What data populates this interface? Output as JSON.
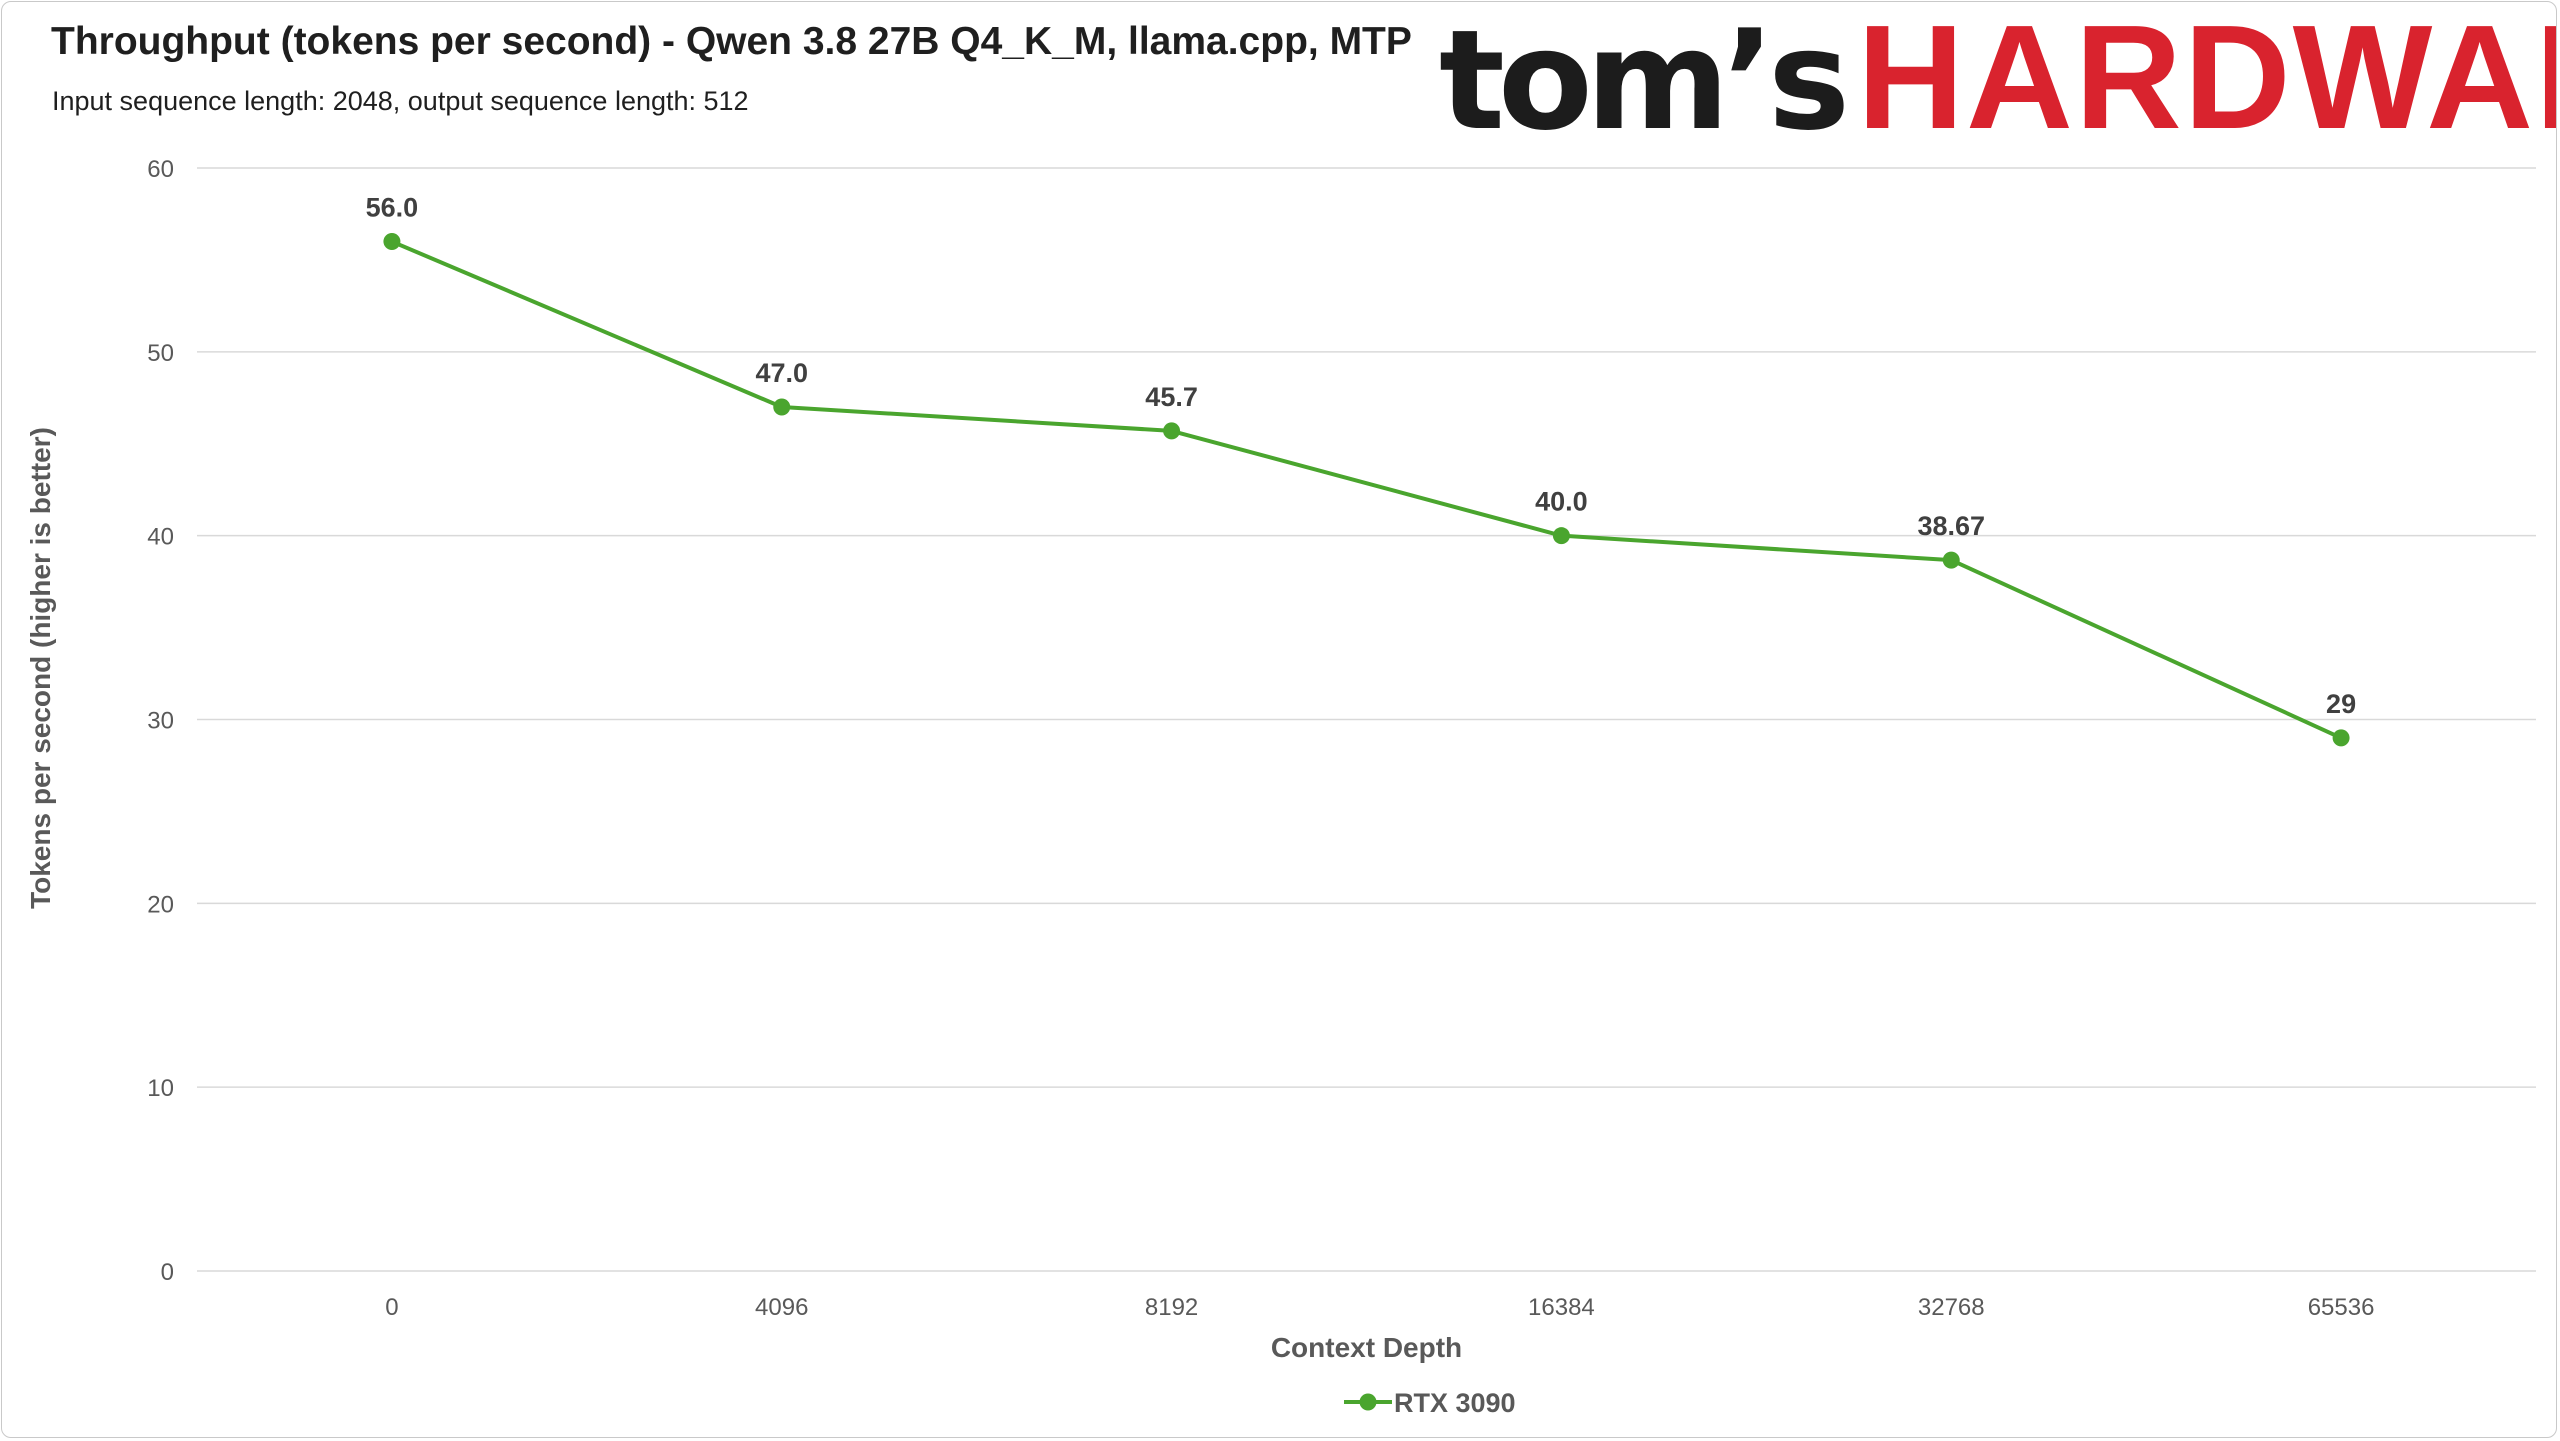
{
  "header": {
    "title": "Throughput (tokens per second) - Qwen 3.8 27B Q4_K_M, llama.cpp, MTP",
    "subtitle": "Input sequence length: 2048, output sequence length: 512",
    "logo_prefix": "tom’s",
    "logo_suffix": "HARDWARE"
  },
  "colors": {
    "series": "#4aa52e",
    "logo_red": "#d9232e",
    "grid": "#d9d9d9",
    "text": "#1f1f1f",
    "axis_text": "#595959"
  },
  "chart_data": {
    "type": "line",
    "title": "Throughput (tokens per second) - Qwen 3.8 27B Q4_K_M, llama.cpp, MTP",
    "subtitle": "Input sequence length: 2048, output sequence length: 512",
    "xlabel": "Context Depth",
    "ylabel": "Tokens per second (higher is better)",
    "categories": [
      "0",
      "4096",
      "8192",
      "16384",
      "32768",
      "65536"
    ],
    "yticks": [
      "0",
      "10",
      "20",
      "30",
      "40",
      "50",
      "60"
    ],
    "ylim": [
      0,
      60
    ],
    "grid": true,
    "legend_position": "bottom-center",
    "series": [
      {
        "name": "RTX 3090",
        "values": [
          56.0,
          47.0,
          45.7,
          40.0,
          38.67,
          29
        ],
        "labels": [
          "56.0",
          "47.0",
          "45.7",
          "40.0",
          "38.67",
          "29"
        ]
      }
    ]
  }
}
